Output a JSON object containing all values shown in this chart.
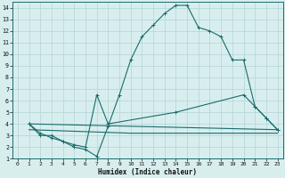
{
  "xlabel": "Humidex (Indice chaleur)",
  "bg_color": "#d8eeee",
  "line_color": "#1a6b6b",
  "grid_color": "#b8d8d8",
  "xlim": [
    -0.5,
    23.5
  ],
  "ylim": [
    1,
    14.5
  ],
  "xticks": [
    0,
    1,
    2,
    3,
    4,
    5,
    6,
    7,
    8,
    9,
    10,
    11,
    12,
    13,
    14,
    15,
    16,
    17,
    18,
    19,
    20,
    21,
    22,
    23
  ],
  "yticks": [
    1,
    2,
    3,
    4,
    5,
    6,
    7,
    8,
    9,
    10,
    11,
    12,
    13,
    14
  ],
  "curve1": {
    "x": [
      1,
      2,
      3,
      4,
      5,
      6,
      7,
      8,
      9,
      10,
      11,
      12,
      13,
      14,
      15,
      16,
      17,
      18,
      19,
      20,
      21,
      22,
      23
    ],
    "y": [
      4,
      3,
      3,
      2.5,
      2,
      1.8,
      1.2,
      3.8,
      6.5,
      9.5,
      11.5,
      12.5,
      13.5,
      14.2,
      14.2,
      12.3,
      12,
      11.5,
      9.5,
      9.5,
      5.5,
      4.5,
      3.5
    ]
  },
  "curve2": {
    "x": [
      1,
      2,
      3,
      4,
      5,
      6,
      7,
      8,
      14,
      20,
      21,
      22,
      23
    ],
    "y": [
      4,
      3.2,
      2.8,
      2.5,
      2.2,
      2.0,
      6.5,
      4.0,
      5.0,
      6.5,
      5.5,
      4.5,
      3.5
    ]
  },
  "curve3": {
    "x": [
      1,
      23
    ],
    "y": [
      4.0,
      3.5
    ]
  },
  "curve4": {
    "x": [
      1,
      10,
      23
    ],
    "y": [
      3.5,
      3.2,
      3.2
    ]
  }
}
